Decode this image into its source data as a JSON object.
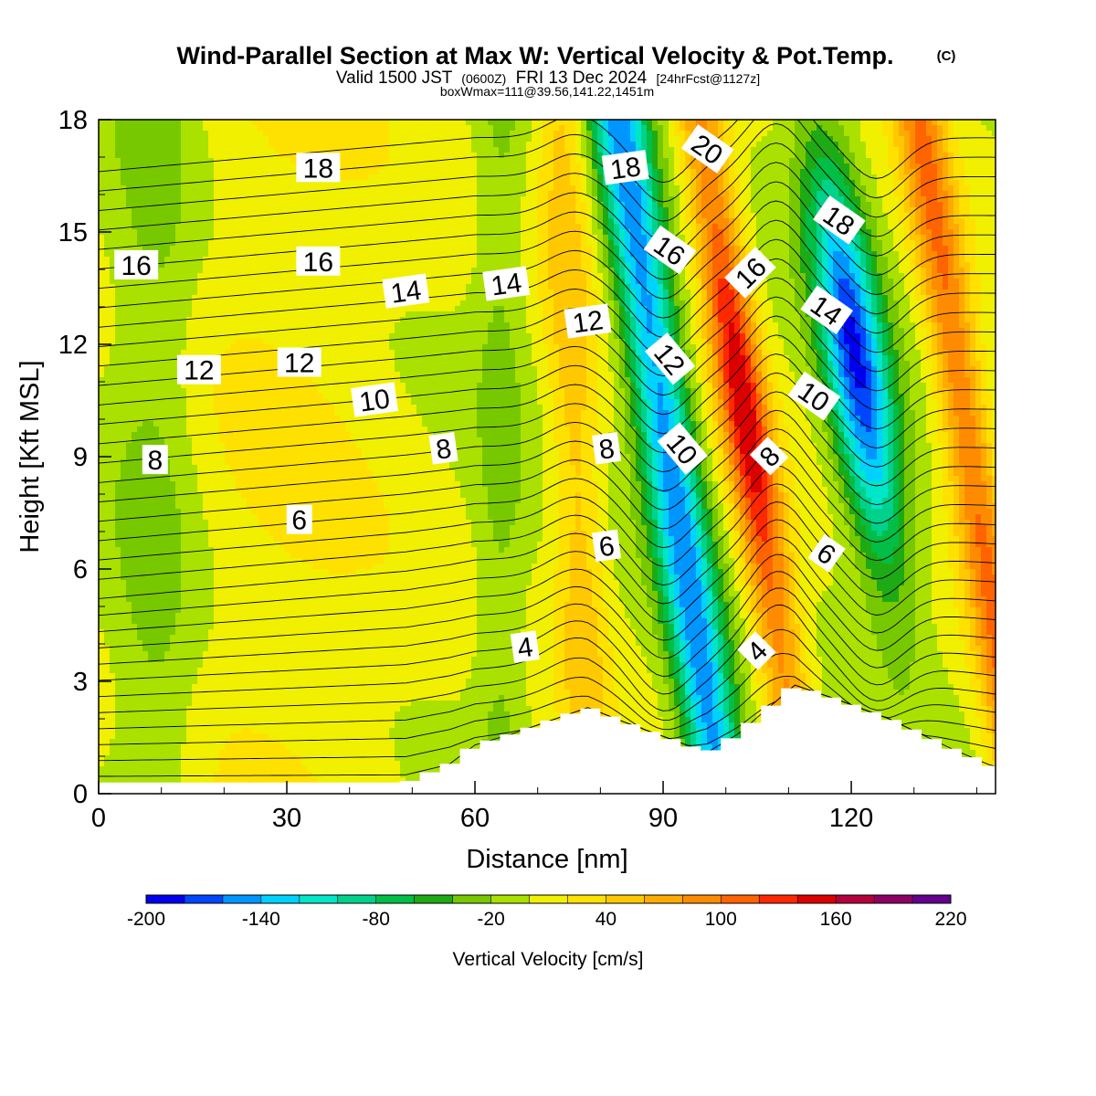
{
  "header": {
    "title_main": "Wind-Parallel Section at Max W: Vertical Velocity & Pot.Temp.",
    "copyright": "(C)",
    "valid_prefix": "Valid 1500 JST",
    "valid_utc": "(0600Z)",
    "valid_date": "FRI 13 Dec 2024",
    "forecast": "[24hrFcst@1127z]",
    "box_info": "boxWmax=111@39.56,141.22,1451m"
  },
  "chart_data": {
    "type": "heatmap",
    "xlabel": "Distance [nm]",
    "ylabel": "Height [Kft MSL]",
    "xlim": [
      0,
      143
    ],
    "ylim": [
      0,
      18
    ],
    "x_ticks": [
      "0",
      "30",
      "60",
      "90",
      "120"
    ],
    "y_ticks": [
      "0",
      "3",
      "6",
      "9",
      "12",
      "15",
      "18"
    ],
    "colorbar": {
      "label": "Vertical Velocity [cm/s]",
      "min": -200,
      "max": 220,
      "step": 20,
      "tick_labels": [
        "-200",
        "-140",
        "-80",
        "-20",
        "40",
        "100",
        "160",
        "220"
      ],
      "colors": [
        "#0000ee",
        "#0046ff",
        "#0096ff",
        "#00d2ff",
        "#00e6c8",
        "#00d28c",
        "#00be46",
        "#1eaa14",
        "#78c800",
        "#aae100",
        "#f0f000",
        "#ffe100",
        "#ffc800",
        "#ffaa00",
        "#ff8c00",
        "#ff6400",
        "#ff2800",
        "#dc0000",
        "#b4003c",
        "#8c0064",
        "#64008c"
      ]
    },
    "velocity_bands": [
      {
        "x_center": 9,
        "width": 14,
        "w": -30
      },
      {
        "x_center": 30,
        "width": 40,
        "w": 20
      },
      {
        "x_center": 64,
        "width": 8,
        "w": -25
      },
      {
        "x_center": 76,
        "width": 8,
        "w": 50
      },
      {
        "x_center": 91,
        "width": 9,
        "w": -150
      },
      {
        "x_center": 104,
        "width": 8,
        "w": 150
      },
      {
        "x_center": 123,
        "width": 10,
        "w": -180
      },
      {
        "x_center": 139,
        "width": 8,
        "w": 100
      }
    ],
    "terrain": {
      "x": [
        0,
        49,
        56,
        60,
        66,
        78,
        84,
        97,
        102,
        111,
        118,
        126,
        136,
        143
      ],
      "z": [
        0.3,
        0.3,
        0.8,
        1.3,
        1.6,
        2.3,
        1.9,
        1.1,
        1.6,
        2.9,
        2.5,
        2.0,
        1.2,
        0.7
      ]
    },
    "theta_contours": {
      "levels": [
        4,
        6,
        8,
        10,
        12,
        14,
        16,
        18,
        20
      ],
      "labels": [
        {
          "text": "18",
          "x": 35,
          "y": 16.7
        },
        {
          "text": "16",
          "x": 6,
          "y": 14.1
        },
        {
          "text": "16",
          "x": 35,
          "y": 14.2
        },
        {
          "text": "14",
          "x": 49,
          "y": 13.4
        },
        {
          "text": "14",
          "x": 65,
          "y": 13.6
        },
        {
          "text": "12",
          "x": 16,
          "y": 11.3
        },
        {
          "text": "12",
          "x": 32,
          "y": 11.5
        },
        {
          "text": "12",
          "x": 78,
          "y": 12.6
        },
        {
          "text": "10",
          "x": 44,
          "y": 10.5
        },
        {
          "text": "8",
          "x": 9,
          "y": 8.9
        },
        {
          "text": "8",
          "x": 55,
          "y": 9.2
        },
        {
          "text": "8",
          "x": 81,
          "y": 9.2
        },
        {
          "text": "6",
          "x": 32,
          "y": 7.3
        },
        {
          "text": "6",
          "x": 81,
          "y": 6.6
        },
        {
          "text": "4",
          "x": 68,
          "y": 3.9
        },
        {
          "text": "18",
          "x": 84,
          "y": 16.7
        },
        {
          "text": "20",
          "x": 97,
          "y": 17.2
        },
        {
          "text": "16",
          "x": 91,
          "y": 14.5
        },
        {
          "text": "12",
          "x": 91,
          "y": 11.6
        },
        {
          "text": "10",
          "x": 93,
          "y": 9.2
        },
        {
          "text": "16",
          "x": 104,
          "y": 13.9
        },
        {
          "text": "8",
          "x": 107,
          "y": 9.0
        },
        {
          "text": "4",
          "x": 105,
          "y": 3.8
        },
        {
          "text": "18",
          "x": 118,
          "y": 15.3
        },
        {
          "text": "14",
          "x": 116,
          "y": 12.9
        },
        {
          "text": "10",
          "x": 114,
          "y": 10.6
        },
        {
          "text": "6",
          "x": 116,
          "y": 6.4
        }
      ]
    }
  }
}
